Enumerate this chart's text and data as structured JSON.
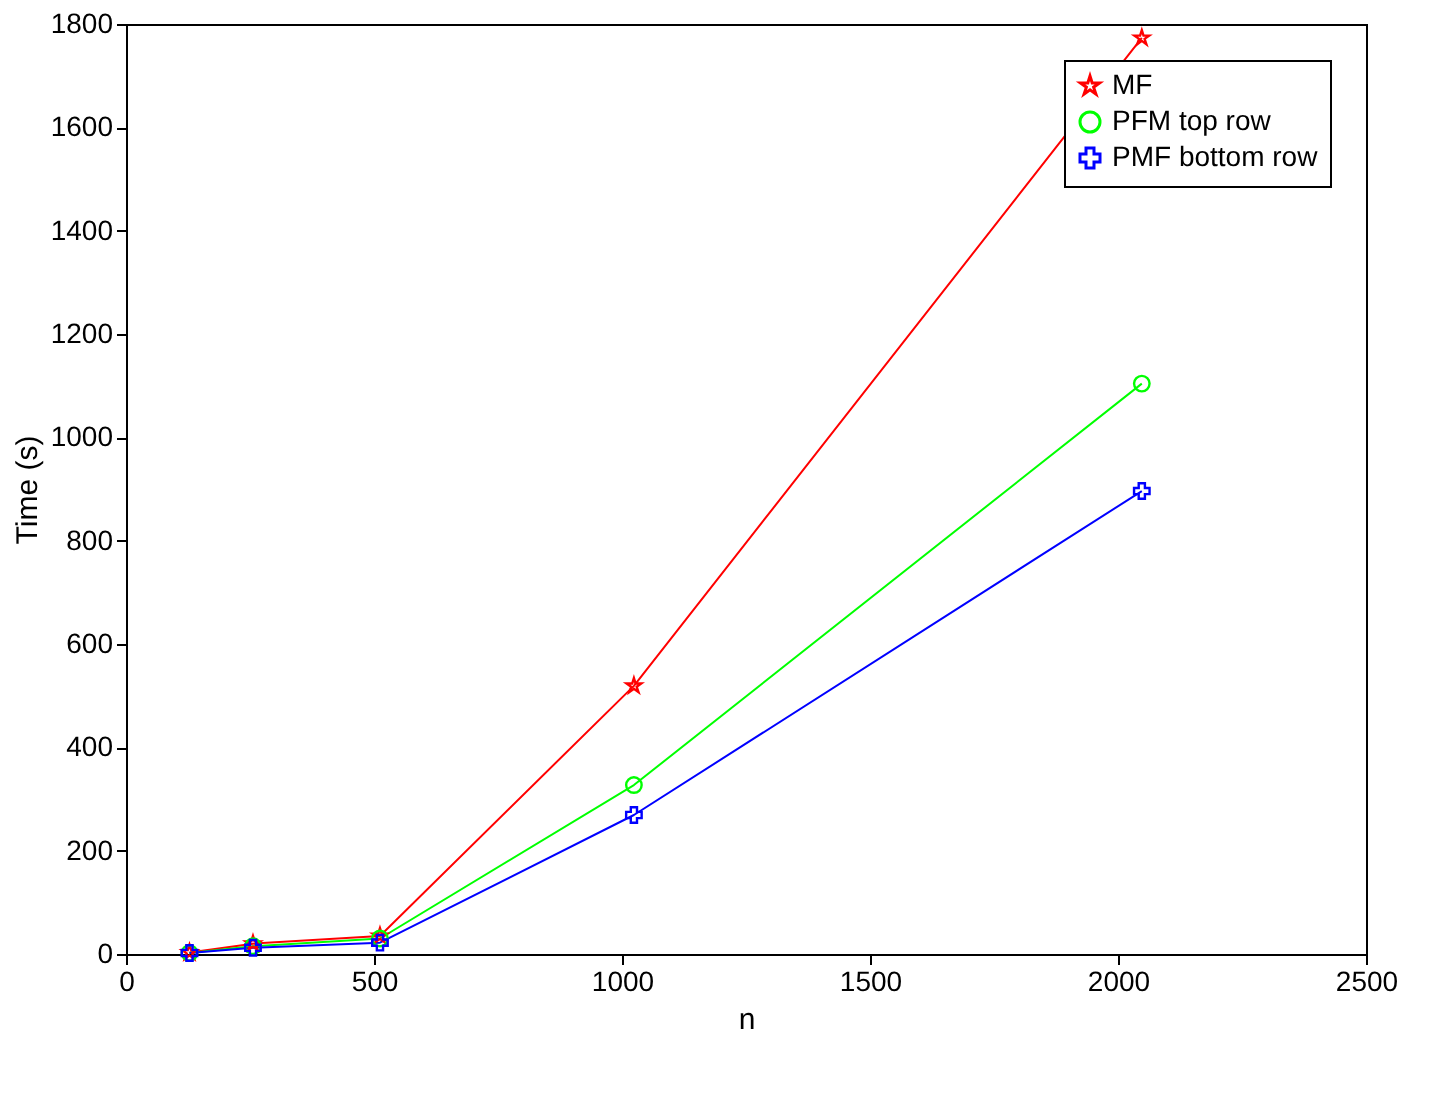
{
  "chart_data": {
    "type": "line",
    "xlabel": "n",
    "ylabel": "Time (s)",
    "x": [
      128,
      256,
      512,
      1024,
      2048
    ],
    "series": [
      {
        "name": "MF",
        "color": "#ff0000",
        "marker": "star",
        "values": [
          3,
          20,
          35,
          519,
          1773
        ]
      },
      {
        "name": "PFM top row",
        "color": "#00ff00",
        "marker": "circle",
        "values": [
          2,
          15,
          30,
          327,
          1104
        ]
      },
      {
        "name": "PMF bottom row",
        "color": "#0000ff",
        "marker": "cross",
        "values": [
          2,
          12,
          22,
          269,
          896
        ]
      }
    ],
    "xlim": [
      0,
      2500
    ],
    "xticks": [
      0,
      500,
      1000,
      1500,
      2000,
      2500
    ],
    "ylim": [
      0,
      1800
    ],
    "yticks": [
      0,
      200,
      400,
      600,
      800,
      1000,
      1200,
      1400,
      1600,
      1800
    ],
    "grid": false,
    "legend": "top right",
    "line_style": "solid"
  }
}
